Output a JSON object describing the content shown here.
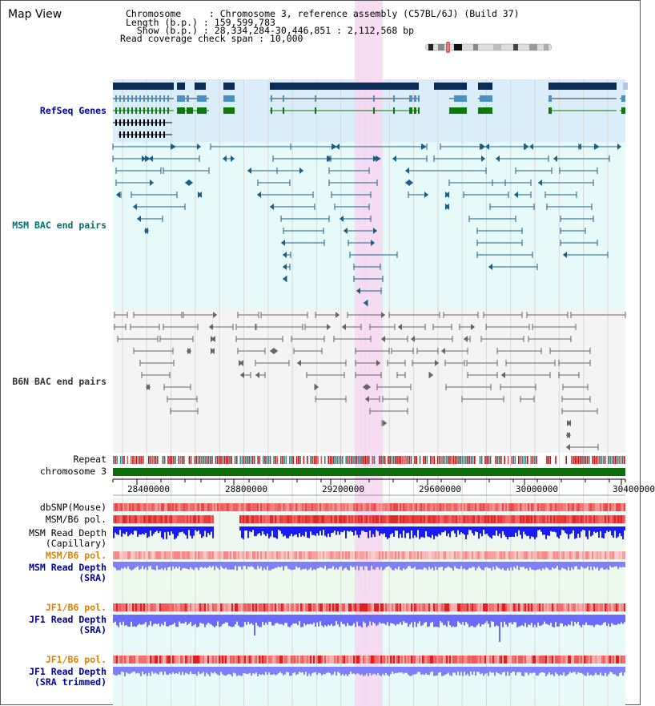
{
  "view_title": "Map View",
  "info": {
    "chromosome": "Chromosome     : Chromosome 3, reference assembly (C57BL/6J) (Build 37)",
    "length": "Length (b.p.) : 159,599,783",
    "show": "  Show (b.p.) : 28,334,284-30,446,851 : 2,112,568 bp",
    "coverage": "Read coverage check span : 10,000"
  },
  "tracks": {
    "refseq": "RefSeq Genes",
    "msm_bac": "MSM BAC end pairs",
    "b6n_bac": "B6N BAC end pairs",
    "repeat": "Repeat",
    "chromosome": "chromosome 3",
    "dbsnp": "dbSNP(Mouse)",
    "msm_b6_pol_1": "MSM/B6 pol.",
    "msm_read_depth_cap_1": "MSM Read Depth",
    "msm_read_depth_cap_2": "(Capillary)",
    "msm_b6_pol_2": "MSM/B6 pol.",
    "msm_read_depth_sra_1": "MSM Read Depth",
    "msm_read_depth_sra_2": "(SRA)",
    "jf1_b6_pol_1": "JF1/B6 pol.",
    "jf1_read_depth_1": "JF1 Read Depth",
    "jf1_read_depth_2": "(SRA)",
    "jf1_b6_pol_2": "JF1/B6 pol.",
    "jf1_trim_1": "JF1 Read Depth",
    "jf1_trim_2": "(SRA trimmed)"
  },
  "axis_ticks": [
    "28400000",
    "28800000",
    "29200000",
    "29600000",
    "30000000",
    "30400000"
  ],
  "colors": {
    "refseq_bg": "#d9eefa",
    "bac_bg": "#e6fafa",
    "highlight": "#f7d6f0",
    "gene_dark": "#0b2c5a",
    "gene_mid": "#4a90c0",
    "gene_green": "#0b7a0b",
    "msm_bac": "#1a5f8a",
    "b6n_bac": "#666666",
    "chrom_bar": "#0b6e0b",
    "snp_red": "#f05050",
    "depth_blue": "#1a1aff",
    "depth_light": "#8080ff"
  }
}
